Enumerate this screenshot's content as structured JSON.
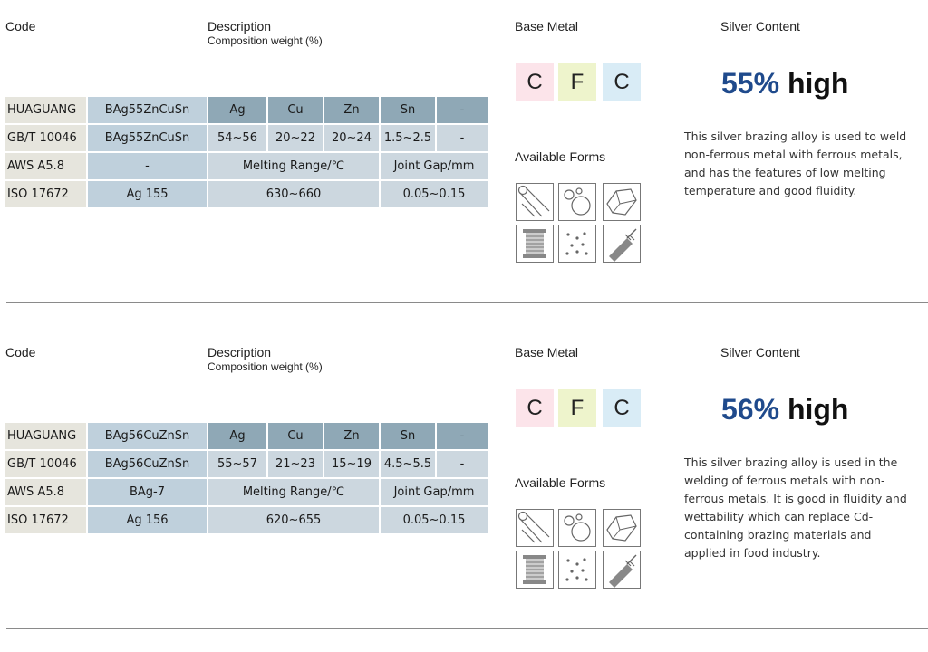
{
  "headers": {
    "code": "Code",
    "description": "Description",
    "composition": "Composition weight (%)",
    "base_metal": "Base Metal",
    "silver_content": "Silver Content",
    "available_forms": "Available Forms"
  },
  "products": [
    {
      "standards": {
        "huaguang": {
          "label": "HUAGUANG",
          "code": "BAg55ZnCuSn"
        },
        "gbt": {
          "label": "GB/T 10046",
          "code": "BAg55ZnCuSn"
        },
        "aws": {
          "label": "AWS A5.8",
          "code": "-"
        },
        "iso": {
          "label": "ISO 17672",
          "code": "Ag 155"
        }
      },
      "elements": {
        "ag": "Ag",
        "cu": "Cu",
        "zn": "Zn",
        "sn": "Sn",
        "other": "-"
      },
      "composition": {
        "ag": "54~56",
        "cu": "20~22",
        "zn": "20~24",
        "sn": "1.5~2.5",
        "other": "-"
      },
      "melting_label": "Melting Range/℃",
      "gap_label": "Joint Gap/mm",
      "melting_value": "630~660",
      "gap_value": "0.05~0.15",
      "base_metals": [
        "C",
        "F",
        "C"
      ],
      "silver_pct": "55%",
      "silver_word": "high",
      "description": "This silver brazing alloy is used to weld non-ferrous metal with ferrous metals, and has the features of low melting temperature and good fluidity."
    },
    {
      "standards": {
        "huaguang": {
          "label": "HUAGUANG",
          "code": "BAg56CuZnSn"
        },
        "gbt": {
          "label": "GB/T 10046",
          "code": "BAg56CuZnSn"
        },
        "aws": {
          "label": "AWS A5.8",
          "code": "BAg-7"
        },
        "iso": {
          "label": "ISO 17672",
          "code": "Ag 156"
        }
      },
      "elements": {
        "ag": "Ag",
        "cu": "Cu",
        "zn": "Zn",
        "sn": "Sn",
        "other": "-"
      },
      "composition": {
        "ag": "55~57",
        "cu": "21~23",
        "zn": "15~19",
        "sn": "4.5~5.5",
        "other": "-"
      },
      "melting_label": "Melting Range/℃",
      "gap_label": "Joint Gap/mm",
      "melting_value": "620~655",
      "gap_value": "0.05~0.15",
      "base_metals": [
        "C",
        "F",
        "C"
      ],
      "silver_pct": "56%",
      "silver_word": "high",
      "description": "This silver brazing alloy is used in the welding of ferrous metals with non-ferrous metals. It is good in fluidity and wettability which can replace Cd-containing brazing materials and applied in food industry."
    }
  ],
  "form_icons": [
    "rod-icon",
    "ring-icon",
    "foil-icon",
    "wire-spool-icon",
    "powder-icon",
    "paste-syringe-icon"
  ]
}
